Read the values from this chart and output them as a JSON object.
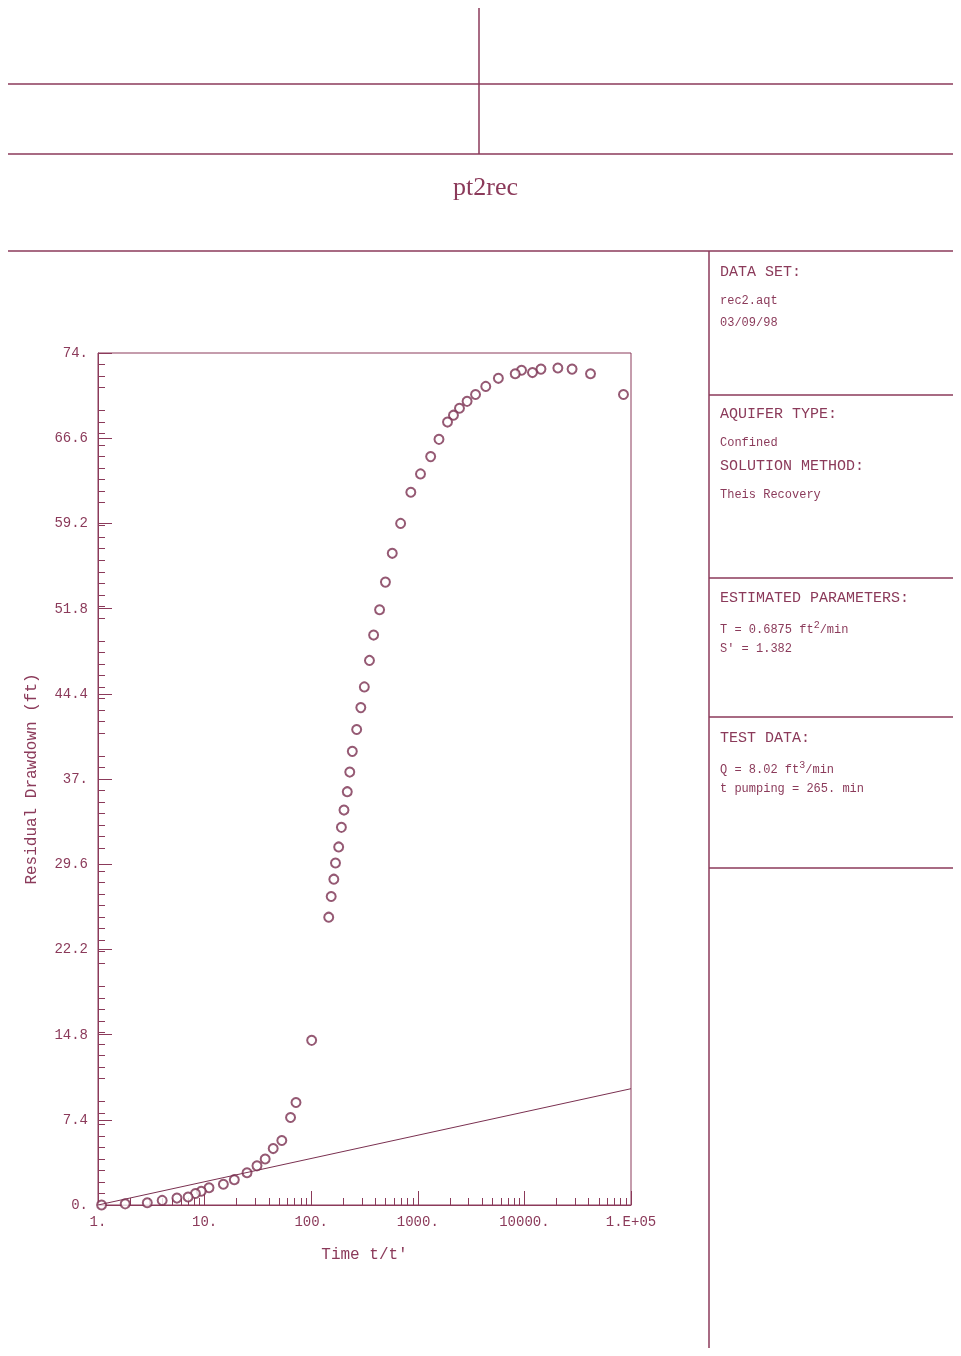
{
  "chart_data": {
    "type": "scatter",
    "title": "pt2rec",
    "xlabel": "Time t/t'",
    "ylabel": "Residual Drawdown (ft)",
    "log": "x",
    "grid": false,
    "marker": "circle",
    "xlim": [
      1,
      100000
    ],
    "xticks": [
      {
        "value": 1,
        "label": "1."
      },
      {
        "value": 10,
        "label": "10."
      },
      {
        "value": 100,
        "label": "100."
      },
      {
        "value": 1000,
        "label": "1000."
      },
      {
        "value": 10000,
        "label": "10000."
      },
      {
        "value": 100000,
        "label": "1.E+05"
      }
    ],
    "ylim": [
      0,
      74
    ],
    "yticks": [
      {
        "value": 0,
        "label": "0."
      },
      {
        "value": 7.4,
        "label": "7.4"
      },
      {
        "value": 14.8,
        "label": "14.8"
      },
      {
        "value": 22.2,
        "label": "22.2"
      },
      {
        "value": 29.6,
        "label": "29.6"
      },
      {
        "value": 37,
        "label": "37."
      },
      {
        "value": 44.4,
        "label": "44.4"
      },
      {
        "value": 51.8,
        "label": "51.8"
      },
      {
        "value": 59.2,
        "label": "59.2"
      },
      {
        "value": 66.6,
        "label": "66.6"
      },
      {
        "value": 74,
        "label": "74."
      }
    ],
    "series": [
      {
        "color": "#7a3050",
        "x": [
          85000,
          41700,
          28000,
          20600,
          14300,
          11900,
          9400,
          8200,
          5700,
          4340,
          3480,
          2900,
          2460,
          2160,
          1900,
          1580,
          1320,
          1060,
          860,
          690,
          576,
          497,
          438,
          385,
          352,
          315,
          292,
          267,
          243,
          230,
          218,
          203,
          192,
          181,
          169,
          163,
          154,
          146,
          101,
          72,
          64,
          53,
          44,
          37,
          31,
          25,
          19,
          15,
          11,
          9.3,
          8.2,
          7.0,
          5.5,
          4.0,
          2.9,
          1.8,
          1.08
        ],
        "values": [
          70.4,
          72.2,
          72.6,
          72.7,
          72.6,
          72.3,
          72.5,
          72.2,
          71.8,
          71.1,
          70.4,
          69.8,
          69.2,
          68.6,
          68.0,
          66.5,
          65.0,
          63.5,
          61.9,
          59.2,
          56.6,
          54.1,
          51.7,
          49.5,
          47.3,
          45.0,
          43.2,
          41.3,
          39.4,
          37.6,
          35.9,
          34.3,
          32.8,
          31.1,
          29.7,
          28.3,
          26.8,
          25.0,
          14.3,
          8.9,
          7.6,
          5.6,
          4.9,
          4.0,
          3.4,
          2.8,
          2.2,
          1.8,
          1.5,
          1.2,
          1.0,
          0.7,
          0.6,
          0.4,
          0.2,
          0.1,
          0.0
        ]
      },
      {
        "type": "line",
        "color": "#7a3050",
        "marker": "none",
        "x": [
          1,
          100000
        ],
        "values": [
          0,
          10.1
        ]
      }
    ],
    "annotations": [
      "DATA SET:",
      "rec2.aqt",
      "03/09/98",
      "AQUIFER TYPE:",
      "Confined",
      "SOLUTION METHOD:",
      "Theis Recovery",
      "ESTIMATED PARAMETERS:",
      "T = 0.6875 ft$^{2}$/min",
      "S' = 1.382",
      "TEST DATA:",
      "Q = 8.02 ft$^{3}$/min",
      "t pumping = 265. min"
    ]
  }
}
